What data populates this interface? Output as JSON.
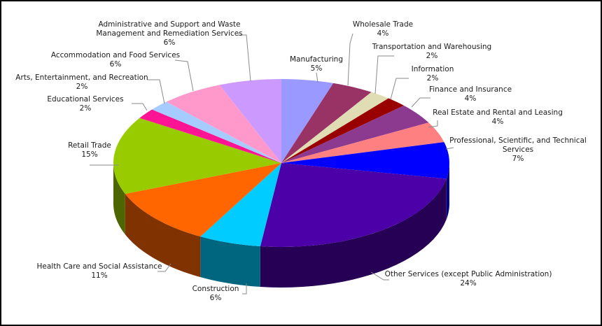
{
  "chart_data": {
    "type": "pie",
    "title": "",
    "style": "3d",
    "slices": [
      {
        "label": "Manufacturing",
        "value": 5,
        "value_label": "5%",
        "color": "#9999ff"
      },
      {
        "label": "Wholesale Trade",
        "value": 4,
        "value_label": "4%",
        "color": "#993366"
      },
      {
        "label": "Transportation and Warehousing",
        "value": 2,
        "value_label": "2%",
        "color": "#e0dcb4"
      },
      {
        "label": "Information",
        "value": 2,
        "value_label": "2%",
        "color": "#990000"
      },
      {
        "label": "Finance and Insurance",
        "value": 4,
        "value_label": "4%",
        "color": "#8b3a8f"
      },
      {
        "label": "Real Estate and Rental and Leasing",
        "value": 4,
        "value_label": "4%",
        "color": "#ff8080"
      },
      {
        "label": "Professional, Scientific, and Technical Services",
        "value": 7,
        "value_label": "7%",
        "color": "#0000ff"
      },
      {
        "label": "Other Services (except Public Administration)",
        "value": 24,
        "value_label": "24%",
        "color": "#4b00a8"
      },
      {
        "label": "Construction",
        "value": 6,
        "value_label": "6%",
        "color": "#00ccff"
      },
      {
        "label": "Health Care and Social Assistance",
        "value": 11,
        "value_label": "11%",
        "color": "#ff6600"
      },
      {
        "label": "Retail Trade",
        "value": 15,
        "value_label": "15%",
        "color": "#99cc00"
      },
      {
        "label": "Educational Services",
        "value": 2,
        "value_label": "2%",
        "color": "#ff1493"
      },
      {
        "label": "Arts, Entertainment, and Recreation",
        "value": 2,
        "value_label": "2%",
        "color": "#a6ccff"
      },
      {
        "label": "Accommodation and Food Services",
        "value": 6,
        "value_label": "6%",
        "color": "#ff99cc"
      },
      {
        "label": "Administrative and Support and Waste Management and Remediation Services",
        "value": 6,
        "value_label": "6%",
        "color": "#cc99ff"
      }
    ]
  }
}
